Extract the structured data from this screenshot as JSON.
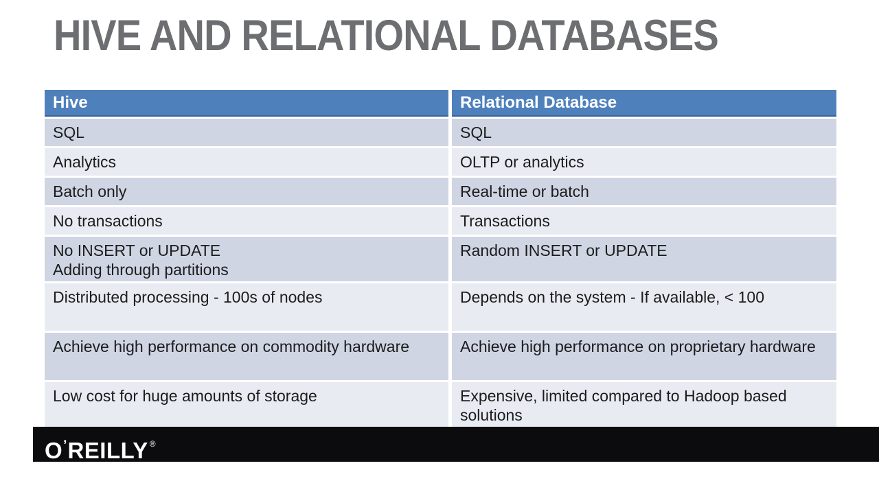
{
  "slide": {
    "title": "HIVE AND RELATIONAL DATABASES"
  },
  "table": {
    "headers": [
      "Hive",
      "Relational Database"
    ],
    "rows": [
      {
        "hive": "SQL",
        "rdb": "SQL"
      },
      {
        "hive": "Analytics",
        "rdb": "OLTP or analytics"
      },
      {
        "hive": "Batch only",
        "rdb": "Real-time or batch"
      },
      {
        "hive": "No transactions",
        "rdb": "Transactions"
      },
      {
        "hive": "No INSERT or UPDATE\nAdding through partitions",
        "rdb": "Random INSERT or UPDATE"
      },
      {
        "hive": "Distributed processing - 100s of nodes",
        "rdb": "Depends on the system - If available, < 100"
      },
      {
        "hive": "Achieve high performance on commodity hardware",
        "rdb": "Achieve high performance on proprietary hardware"
      },
      {
        "hive": "Low cost for huge amounts of storage",
        "rdb": "Expensive, limited compared to Hadoop based solutions"
      }
    ]
  },
  "footer": {
    "brand_o": "O",
    "brand_apostrophe": "’",
    "brand_rest": "REILLY",
    "registered_mark": "®"
  },
  "colors": {
    "header_blue": "#4E80BC",
    "band_dark": "#CFD5E3",
    "band_light": "#E8EBF2",
    "title_gray": "#6D6E71",
    "footer_black": "#0C0C0E"
  }
}
